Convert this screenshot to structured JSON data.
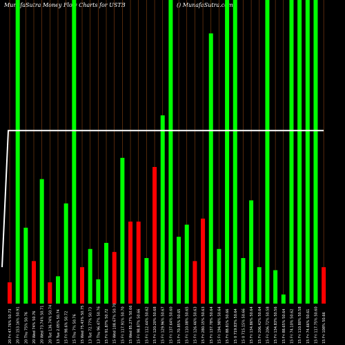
{
  "header": {
    "left": "MunafaSutra  Money Flow  Charts for USTB",
    "right": "() MunafaSutra.com"
  },
  "chart_data": {
    "type": "bar",
    "title": "MunafaSutra  Money Flow  Charts for USTB",
    "ylim": [
      0,
      100
    ],
    "grid": true,
    "categories": [
      "20 Fri 47.76% 50.73",
      "20 Fri 153.16% 50.91",
      "20 Thu 75% 50.76",
      "20 Wed 74% 50.76",
      "20 Wed 73.74% 50.71",
      "20 Tue 136.74% 50.74",
      "13 Tue 2.05% 50.74",
      "15 Fri 98.6% 50.72",
      "15 Thu 7% 50.76",
      "15 Wed 75.43% 50.75",
      "13 Tue 72.77% 50.73",
      "13 Thu 96.47% 50.76",
      "15 Fri 91.87% 50.72",
      "15 Wed 108.67% 50.70",
      "15 Fri 117.91% 50.70",
      "15 Wed 85.27% 50.66",
      "15 Fri 98.87% 50.66",
      "15 Fri 112.44% 50.62",
      "15 Fri 120.20% 50.68",
      "15 Fri 129.96% 50.67",
      "15 Fri 137.64% 50.60",
      "15 Fri 70.85% 50.65",
      "15 Fri 110.08% 50.65",
      "15 Fri 126.46% 50.63",
      "15 Fri 280.15% 50.63",
      "15 Fri 137.78% 50.64",
      "15 Fri 194.98% 50.64",
      "15 Fri 88.81% 50.66",
      "15 0 719.83% 50.64",
      "15 0 715.15% 50.66",
      "15 Fri 134.86% 50.64",
      "15 Fri 206.42% 50.64",
      "15 Fri 206.72% 50.58",
      "15 Fri 134.83% 50.56",
      "15 Fri 88.65% 50.64",
      "15 Fri 74.10% 50.62",
      "15 Fri 110.80% 50.58",
      "15 Fri 74.66% 50.61",
      "15 Fri 117.75% 50.60",
      "15 Fri 108% 50.66"
    ],
    "series": [
      {
        "values": [
          7,
          100,
          25,
          14,
          41,
          7,
          9,
          33,
          100,
          12,
          18,
          8,
          20,
          17,
          48,
          27,
          27,
          15,
          45,
          62,
          100,
          22,
          26,
          14,
          28,
          89,
          18,
          100,
          100,
          15,
          34,
          12,
          100,
          11,
          3,
          100,
          100,
          100,
          100,
          12
        ],
        "colors": [
          "#ff0000",
          "#00ff00",
          "#00ff00",
          "#ff0000",
          "#00ff00",
          "#ff0000",
          "#00ff00",
          "#00ff00",
          "#00ff00",
          "#ff0000",
          "#00ff00",
          "#00ff00",
          "#00ff00",
          "#ff0000",
          "#00ff00",
          "#ff0000",
          "#ff0000",
          "#00ff00",
          "#ff0000",
          "#00ff00",
          "#00ff00",
          "#00ff00",
          "#00ff00",
          "#ff0000",
          "#ff0000",
          "#00ff00",
          "#00ff00",
          "#00ff00",
          "#00ff00",
          "#00ff00",
          "#00ff00",
          "#00ff00",
          "#00ff00",
          "#00ff00",
          "#00ff00",
          "#00ff00",
          "#00ff00",
          "#00ff00",
          "#00ff00",
          "#ff0000"
        ]
      }
    ],
    "price_line": [
      12,
      57,
      57,
      57,
      57,
      57,
      57,
      57,
      57,
      57,
      57,
      57,
      57,
      57,
      57,
      57,
      57,
      57,
      57,
      57,
      57,
      57,
      57,
      57,
      57,
      57,
      57,
      57,
      57,
      57,
      57,
      57,
      57,
      57,
      57,
      57,
      57,
      57,
      57,
      57
    ],
    "colors": {
      "positive": "#00ff00",
      "negative": "#ff0000",
      "grid": "#8b4513",
      "line": "#ffffff",
      "background": "#000000"
    }
  }
}
